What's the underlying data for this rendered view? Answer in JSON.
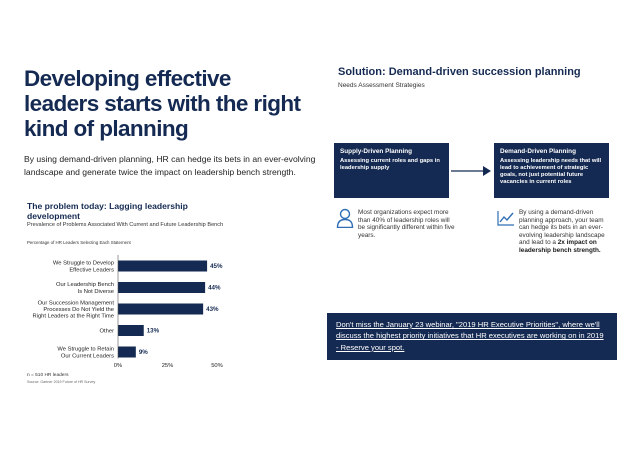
{
  "left": {
    "headline_lines": [
      "Developing effective",
      "leaders starts with the right",
      "kind of planning"
    ],
    "intro": "By using demand-driven planning, HR can hedge its bets in an ever-evolving landscape and generate twice the impact on leadership bench strength.",
    "problem": {
      "title": "The problem today: Lagging leadership development",
      "subtitle": "Prevalence of Problems Associated With Current and Future Leadership Bench",
      "note": "Percentage of HR Leaders Selecting Each Statement",
      "footnote": "n = 510 HR leaders",
      "source": "Source: Gartner 2019 Future of HR Survey"
    }
  },
  "chart_data": {
    "type": "bar",
    "orientation": "horizontal",
    "title": "",
    "xlabel": "",
    "ylabel": "",
    "categories": [
      [
        "We Struggle to Develop",
        "Effective Leaders"
      ],
      [
        "Our Leadership Bench",
        "Is Not Diverse"
      ],
      [
        "Our Succession Management",
        "Processes Do Not Yield the",
        "Right Leaders at the Right Time"
      ],
      [
        "Other"
      ],
      [
        "We Struggle to Retain",
        "Our Current Leaders"
      ]
    ],
    "values": [
      45,
      44,
      43,
      13,
      9
    ],
    "value_labels": [
      "45%",
      "44%",
      "43%",
      "13%",
      "9%"
    ],
    "xlim": [
      0,
      50
    ],
    "xticks": [
      0,
      25,
      50
    ],
    "xtick_labels": [
      "0%",
      "25%",
      "50%"
    ],
    "grid": false,
    "bar_color": "#152a52"
  },
  "right": {
    "solution": {
      "title": "Solution: Demand-driven succession planning",
      "subtitle": "Needs Assessment Strategies"
    },
    "supply": {
      "title": "Supply-Driven Planning",
      "text": "Assessing current roles and gaps in leadership supply",
      "stat": "Most organizations expect more than 40% of leadership roles will be significantly different within five years.",
      "icon": "person-icon"
    },
    "demand": {
      "title": "Demand-Driven Planning",
      "text": "Assessing leadership needs that will lead to achievement of strategic goals, not just potential future vacancies in current roles",
      "stat_prefix": "By using a demand-driven planning approach, your team can hedge its bets in an ever-evolving leadership landscape and lead to a ",
      "stat_bold": "2x impact on leadership bench strength.",
      "icon": "trend-chart-icon"
    },
    "webinar_text": "Don't miss the January 23 webinar, \"2019 HR Executive Priorities\", where we'll discuss the highest priority initiatives that HR executives are working on in 2019 - Reserve your spot."
  },
  "colors": {
    "navy": "#152a52",
    "accent_blue": "#2f6db5",
    "text": "#222222"
  }
}
